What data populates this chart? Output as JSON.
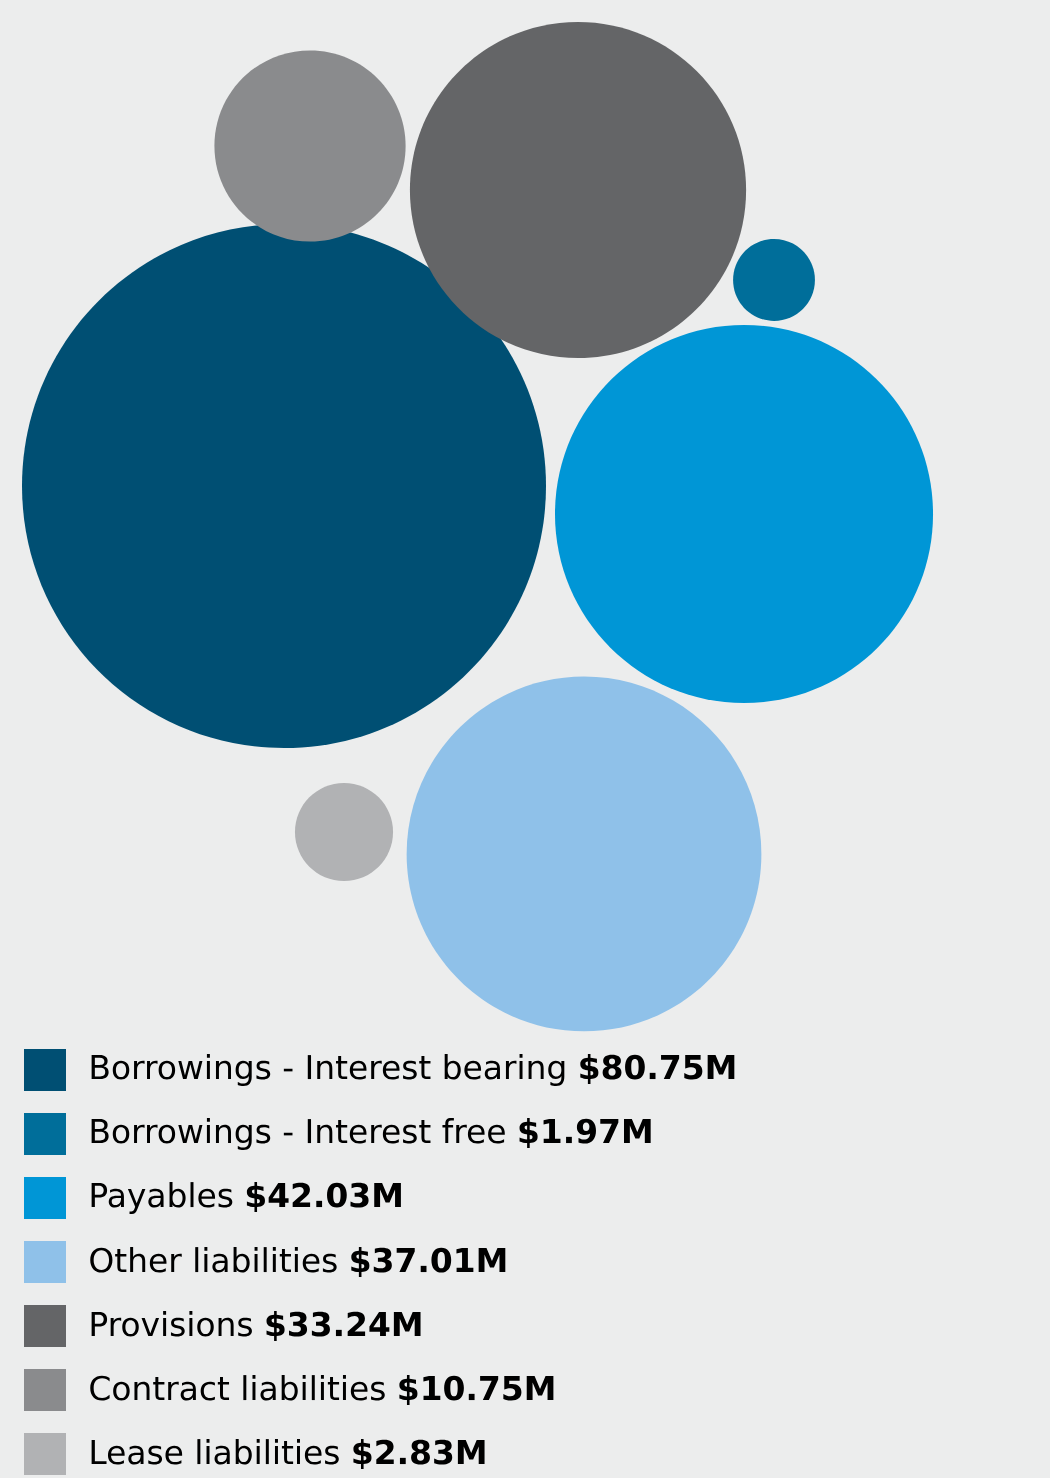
{
  "chart_data": {
    "type": "other",
    "categories": [
      "Borrowings - Interest bearing",
      "Borrowings - Interest free",
      "Payables",
      "Other liabilities",
      "Provisions",
      "Contract liabilities",
      "Lease liabilities"
    ],
    "values": [
      80.75,
      1.97,
      42.03,
      37.01,
      33.24,
      10.75,
      2.83
    ],
    "value_labels": [
      "$80.75M",
      "$1.97M",
      "$42.03M",
      "$37.01M",
      "$33.24M",
      "$10.75M",
      "$2.83M"
    ],
    "colors": [
      "#004f73",
      "#006e9a",
      "#0096d6",
      "#8fc1e9",
      "#646567",
      "#8a8b8d",
      "#b1b2b4"
    ]
  }
}
